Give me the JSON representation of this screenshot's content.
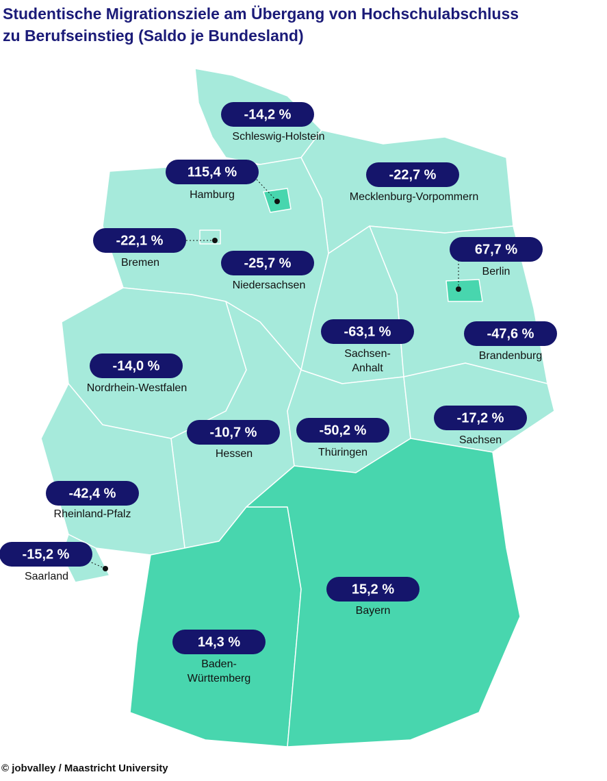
{
  "title_lines": [
    "Studentische Migrationsziele am Übergang von Hochschulabschluss",
    "zu Berufseinstieg (Saldo je Bundesland)"
  ],
  "source": "© jobvalley / Maastricht University",
  "colors": {
    "positive": "#48d6ae",
    "negative": "#a6eadb",
    "pill": "#15156b"
  },
  "regions": [
    {
      "name_lines": [
        "Schleswig-Holstein"
      ],
      "label": "-14,2 %"
    },
    {
      "name_lines": [
        "Hamburg"
      ],
      "label": "115,4 %"
    },
    {
      "name_lines": [
        "Mecklenburg-Vorpommern"
      ],
      "label": "-22,7 %"
    },
    {
      "name_lines": [
        "Bremen"
      ],
      "label": "-22,1 %"
    },
    {
      "name_lines": [
        "Niedersachsen"
      ],
      "label": "-25,7 %"
    },
    {
      "name_lines": [
        "Berlin"
      ],
      "label": "67,7 %"
    },
    {
      "name_lines": [
        "Sachsen-",
        "Anhalt"
      ],
      "label": "-63,1 %"
    },
    {
      "name_lines": [
        "Brandenburg"
      ],
      "label": "-47,6 %"
    },
    {
      "name_lines": [
        "Nordrhein-Westfalen"
      ],
      "label": "-14,0 %"
    },
    {
      "name_lines": [
        "Hessen"
      ],
      "label": "-10,7 %"
    },
    {
      "name_lines": [
        "Thüringen"
      ],
      "label": "-50,2 %"
    },
    {
      "name_lines": [
        "Sachsen"
      ],
      "label": "-17,2 %"
    },
    {
      "name_lines": [
        "Rheinland-Pfalz"
      ],
      "label": "-42,4 %"
    },
    {
      "name_lines": [
        "Saarland"
      ],
      "label": "-15,2 %"
    },
    {
      "name_lines": [
        "Baden-",
        "Württemberg"
      ],
      "label": "14,3 %"
    },
    {
      "name_lines": [
        "Bayern"
      ],
      "label": "15,2 %"
    }
  ]
}
